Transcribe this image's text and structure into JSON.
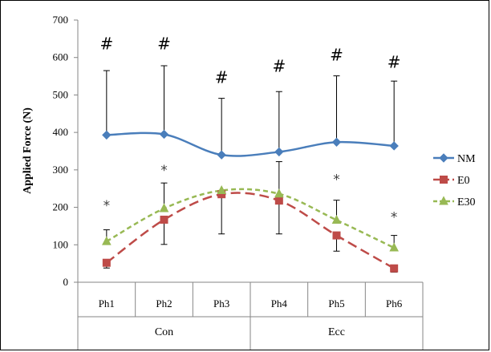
{
  "chart_data": {
    "type": "line",
    "ylabel": "Applied Force (N)",
    "xlabel": "",
    "ylim": [
      0,
      700
    ],
    "yticks": [
      0,
      100,
      200,
      300,
      400,
      500,
      600,
      700
    ],
    "categories": [
      "Ph1",
      "Ph2",
      "Ph3",
      "Ph4",
      "Ph5",
      "Ph6"
    ],
    "groups": [
      {
        "label": "Con",
        "span": [
          0,
          2
        ]
      },
      {
        "label": "Ecc",
        "span": [
          3,
          5
        ]
      }
    ],
    "series": [
      {
        "name": "NM",
        "values": [
          393,
          395,
          340,
          348,
          374,
          364
        ],
        "error_up": [
          565,
          578,
          491,
          509,
          551,
          537
        ],
        "error_down": [],
        "color": "#4a7ebb",
        "marker": "diamond",
        "dash": "solid"
      },
      {
        "name": "E0",
        "values": [
          52,
          167,
          235,
          218,
          125,
          37
        ],
        "error_up": [],
        "error_down": [
          38,
          101,
          129,
          129,
          83,
          27
        ],
        "color": "#be4b48",
        "marker": "square",
        "dash": "long-dash"
      },
      {
        "name": "E30",
        "values": [
          109,
          197,
          245,
          236,
          166,
          92
        ],
        "error_up": [
          140,
          265,
          0,
          322,
          219,
          125
        ],
        "error_down": [],
        "color": "#98b954",
        "marker": "triangle",
        "dash": "short-dash"
      }
    ],
    "legend": {
      "position": "right"
    },
    "annotations": [
      {
        "text": "#",
        "category": 0,
        "y": 635,
        "kind": "hash"
      },
      {
        "text": "#",
        "category": 1,
        "y": 635,
        "kind": "hash"
      },
      {
        "text": "#",
        "category": 2,
        "y": 545,
        "kind": "hash"
      },
      {
        "text": "#",
        "category": 3,
        "y": 575,
        "kind": "hash"
      },
      {
        "text": "#",
        "category": 4,
        "y": 605,
        "kind": "hash"
      },
      {
        "text": "#",
        "category": 5,
        "y": 585,
        "kind": "hash"
      },
      {
        "text": "*",
        "category": 0,
        "y": 205,
        "kind": "star"
      },
      {
        "text": "*",
        "category": 1,
        "y": 300,
        "kind": "star"
      },
      {
        "text": "*",
        "category": 4,
        "y": 275,
        "kind": "star"
      },
      {
        "text": "*",
        "category": 5,
        "y": 175,
        "kind": "star"
      }
    ],
    "grid": false
  }
}
